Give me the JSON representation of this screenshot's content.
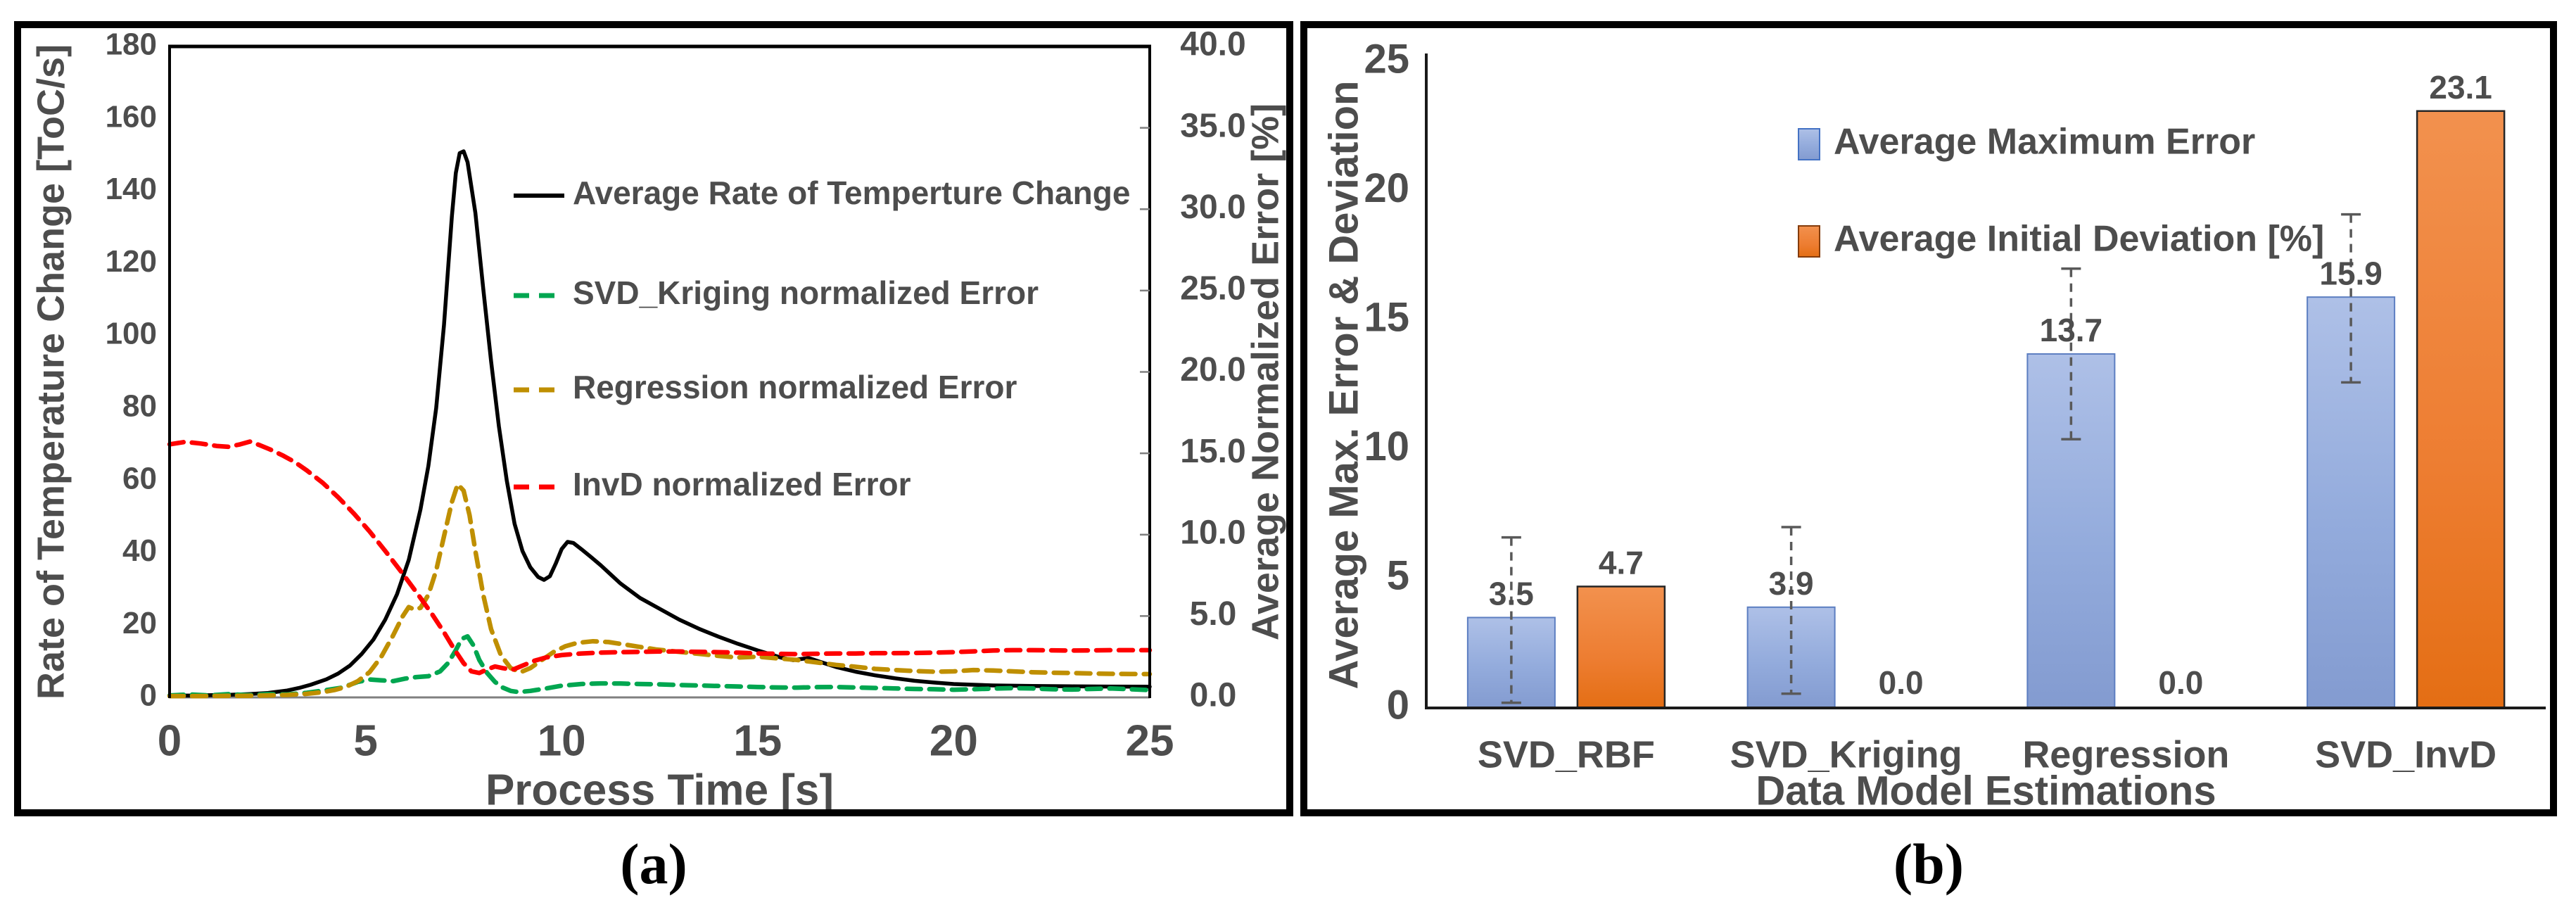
{
  "figure": {
    "background": "#ffffff",
    "panel_border_color": "#000000",
    "text_color": "#4d4d4d"
  },
  "chart_data": [
    {
      "type": "line",
      "caption": "(a)",
      "xlabel": "Process Time [s]",
      "ylabel_left": "Rate of Temperature Change [ToC/s]",
      "ylabel_right": "Average Normalized Error [%]",
      "xlim": [
        0,
        25
      ],
      "xticks": [
        0,
        5,
        10,
        15,
        20,
        25
      ],
      "ylim_left": [
        0,
        180
      ],
      "yticks_left": [
        0,
        20,
        40,
        60,
        80,
        100,
        120,
        140,
        160,
        180
      ],
      "ylim_right": [
        0,
        40
      ],
      "yticks_right": [
        "0.0",
        "5.0",
        "10.0",
        "15.0",
        "20.0",
        "25.0",
        "30.0",
        "35.0",
        "40.0"
      ],
      "grid": false,
      "legend_position": "inside-top-right",
      "series": [
        {
          "name": "Average Rate of Temperture Change",
          "axis": "left",
          "color": "#000000",
          "style": "solid",
          "x": [
            0,
            0.5,
            1,
            1.5,
            2,
            2.5,
            3,
            3.3,
            3.6,
            4,
            4.3,
            4.6,
            4.9,
            5.2,
            5.5,
            5.8,
            6.1,
            6.4,
            6.6,
            6.8,
            7.0,
            7.1,
            7.2,
            7.3,
            7.4,
            7.5,
            7.6,
            7.8,
            8.0,
            8.2,
            8.4,
            8.6,
            8.8,
            9.0,
            9.2,
            9.4,
            9.55,
            9.7,
            9.85,
            10.0,
            10.15,
            10.3,
            10.5,
            10.75,
            11,
            11.25,
            11.5,
            12,
            12.5,
            13,
            13.5,
            14,
            14.5,
            15,
            15.3,
            15.6,
            15.9,
            16.1,
            16.3,
            16.6,
            17,
            17.5,
            18,
            18.5,
            19,
            19.5,
            20,
            20.5,
            21,
            22,
            23,
            24,
            25
          ],
          "y": [
            0.5,
            0.5,
            0.6,
            0.7,
            0.9,
            1.2,
            1.9,
            2.6,
            3.5,
            5,
            6.6,
            8.8,
            12,
            16,
            21.5,
            28.5,
            38,
            52,
            64,
            80,
            103,
            118,
            133,
            145,
            150.5,
            151,
            148,
            134,
            113,
            93,
            75,
            60,
            48,
            40.5,
            36,
            33.3,
            32.5,
            33.5,
            37,
            41,
            43,
            42.7,
            41,
            38.8,
            36.5,
            34,
            31.5,
            27.5,
            24.5,
            21.5,
            19,
            16.8,
            14.8,
            13,
            12,
            11,
            10.3,
            10.6,
            10.9,
            9.8,
            8.4,
            7.1,
            6.1,
            5.3,
            4.6,
            4.1,
            3.7,
            3.5,
            3.3,
            3.15,
            3.05,
            3.0,
            2.95
          ]
        },
        {
          "name": "SVD_Kriging normalized Error",
          "axis": "right",
          "color": "#00A650",
          "style": "dashed",
          "x": [
            0,
            0.5,
            1,
            1.5,
            2,
            2.5,
            3,
            3.5,
            4,
            4.4,
            4.8,
            5.1,
            5.4,
            5.7,
            6.0,
            6.3,
            6.6,
            6.9,
            7.1,
            7.3,
            7.45,
            7.6,
            7.75,
            7.9,
            8.1,
            8.3,
            8.5,
            8.7,
            8.9,
            9.2,
            9.6,
            10,
            10.5,
            11,
            11.5,
            12,
            12.5,
            13,
            13.5,
            14,
            14.5,
            15,
            15.5,
            16,
            16.5,
            17,
            17.5,
            18,
            18.5,
            19,
            19.5,
            20,
            20.5,
            21,
            21.5,
            22,
            22.5,
            23,
            23.5,
            24,
            24.5,
            25
          ],
          "y": [
            0.12,
            0.18,
            0.12,
            0.2,
            0.14,
            0.2,
            0.18,
            0.28,
            0.45,
            0.6,
            0.95,
            1.1,
            1.05,
            1.0,
            1.15,
            1.25,
            1.3,
            1.6,
            2.1,
            2.9,
            3.6,
            3.75,
            3.2,
            2.3,
            1.5,
            0.95,
            0.6,
            0.4,
            0.33,
            0.4,
            0.55,
            0.72,
            0.82,
            0.86,
            0.85,
            0.82,
            0.8,
            0.76,
            0.73,
            0.7,
            0.67,
            0.64,
            0.61,
            0.6,
            0.63,
            0.64,
            0.61,
            0.58,
            0.55,
            0.52,
            0.5,
            0.47,
            0.5,
            0.54,
            0.57,
            0.55,
            0.5,
            0.48,
            0.52,
            0.55,
            0.5,
            0.45
          ]
        },
        {
          "name": "Regression normalized Error",
          "axis": "right",
          "color": "#BF8F00",
          "style": "dashed",
          "x": [
            0,
            0.5,
            1,
            1.5,
            2,
            2.5,
            3,
            3.5,
            3.9,
            4.2,
            4.5,
            4.8,
            5.1,
            5.4,
            5.7,
            5.95,
            6.1,
            6.25,
            6.4,
            6.6,
            6.8,
            7.0,
            7.2,
            7.35,
            7.5,
            7.65,
            7.8,
            8.0,
            8.2,
            8.45,
            8.7,
            8.95,
            9.2,
            9.5,
            9.8,
            10.1,
            10.4,
            10.8,
            11.2,
            11.6,
            12,
            12.4,
            12.8,
            13.2,
            13.6,
            14,
            14.5,
            15,
            15.5,
            16,
            16.5,
            17,
            17.5,
            18,
            18.5,
            19,
            19.5,
            20,
            20.5,
            21,
            21.5,
            22,
            22.5,
            23,
            23.5,
            24,
            24.5,
            25
          ],
          "y": [
            0.08,
            0.08,
            0.08,
            0.1,
            0.1,
            0.12,
            0.15,
            0.22,
            0.32,
            0.45,
            0.65,
            1.0,
            1.55,
            2.5,
            3.8,
            5.0,
            5.55,
            5.4,
            5.5,
            6.3,
            7.8,
            9.9,
            12.0,
            13.1,
            12.7,
            11.2,
            9.0,
            6.3,
            4.2,
            2.6,
            1.8,
            1.55,
            1.8,
            2.3,
            2.8,
            3.15,
            3.35,
            3.45,
            3.4,
            3.25,
            3.1,
            2.95,
            2.85,
            2.75,
            2.65,
            2.55,
            2.45,
            2.5,
            2.4,
            2.3,
            2.15,
            2.0,
            1.88,
            1.75,
            1.68,
            1.62,
            1.58,
            1.6,
            1.68,
            1.65,
            1.6,
            1.55,
            1.52,
            1.5,
            1.47,
            1.45,
            1.44,
            1.43
          ]
        },
        {
          "name": "InvD normalized Error",
          "axis": "right",
          "color": "#FF0000",
          "style": "dashed",
          "x": [
            0,
            0.4,
            0.8,
            1.2,
            1.5,
            1.8,
            2.05,
            2.3,
            2.6,
            2.9,
            3.2,
            3.5,
            3.9,
            4.3,
            4.7,
            5.1,
            5.5,
            5.9,
            6.3,
            6.7,
            7.0,
            7.25,
            7.5,
            7.7,
            7.9,
            8.1,
            8.3,
            8.5,
            8.75,
            9.0,
            9.3,
            9.6,
            10,
            10.5,
            11,
            11.5,
            12,
            12.5,
            13,
            13.5,
            14,
            14.5,
            15,
            15.5,
            16,
            16.5,
            17,
            17.5,
            18,
            18.5,
            19,
            19.5,
            20,
            20.5,
            21,
            21.5,
            22,
            23,
            24,
            25
          ],
          "y": [
            15.55,
            15.7,
            15.6,
            15.45,
            15.4,
            15.55,
            15.72,
            15.5,
            15.2,
            14.85,
            14.45,
            13.95,
            13.2,
            12.3,
            11.3,
            10.2,
            9.0,
            7.75,
            6.45,
            5.1,
            4.0,
            3.0,
            2.1,
            1.6,
            1.5,
            1.72,
            1.9,
            1.8,
            1.7,
            1.95,
            2.25,
            2.45,
            2.6,
            2.7,
            2.75,
            2.78,
            2.8,
            2.82,
            2.82,
            2.8,
            2.78,
            2.75,
            2.7,
            2.68,
            2.66,
            2.68,
            2.7,
            2.7,
            2.72,
            2.72,
            2.73,
            2.75,
            2.78,
            2.83,
            2.88,
            2.9,
            2.9,
            2.88,
            2.9,
            2.9
          ]
        }
      ]
    },
    {
      "type": "bar",
      "caption": "(b)",
      "categories": [
        "SVD_RBF",
        "SVD_Kriging",
        "Regression",
        "SVD_InvD"
      ],
      "xlabel": "Data Model Estimations",
      "ylabel": "Average Max. Error & Deviation",
      "ylim": [
        0,
        25
      ],
      "yticks": [
        0,
        5,
        10,
        15,
        20,
        25
      ],
      "grid": false,
      "legend_position": "inside-top",
      "series": [
        {
          "name": "Average Maximum Error",
          "color": "#8FAADC",
          "values": [
            3.5,
            3.9,
            13.7,
            15.9
          ],
          "error_low": [
            0.2,
            0.55,
            10.4,
            12.6
          ],
          "error_high": [
            6.6,
            7.0,
            17.0,
            19.1
          ]
        },
        {
          "name": "Average Initial Deviation [%]",
          "color": "#ED7D31",
          "values": [
            4.7,
            0.0,
            0.0,
            23.1
          ]
        }
      ],
      "value_labels": [
        [
          "3.5",
          "3.9",
          "13.7",
          "15.9"
        ],
        [
          "4.7",
          "0.0",
          "0.0",
          "23.1"
        ]
      ]
    }
  ]
}
